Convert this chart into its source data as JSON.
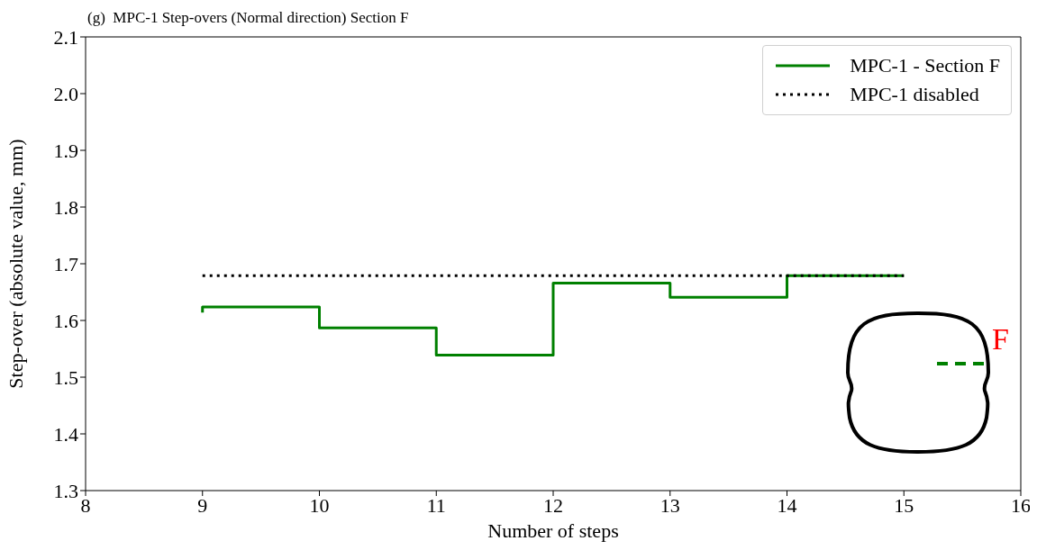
{
  "chart_data": {
    "type": "line",
    "title": "(g)  MPC-1 Step-overs (Normal direction) Section F",
    "xlabel": "Number of steps",
    "ylabel": "Step-over (absolute value, mm)",
    "xlim": [
      8,
      16
    ],
    "xticks": [
      8,
      9,
      10,
      11,
      12,
      13,
      14,
      15,
      16
    ],
    "ylim": [
      1.3,
      2.1
    ],
    "yticks": [
      1.3,
      1.4,
      1.5,
      1.6,
      1.7,
      1.8,
      1.9,
      {
        "value": 2,
        "label": "2.0"
      },
      2.1
    ],
    "series": [
      {
        "name": "MPC-1 - Section F",
        "type": "step",
        "color": "#008000",
        "line_style": "solid",
        "x": [
          9,
          10,
          11,
          12,
          13,
          14,
          15
        ],
        "values": [
          1.614,
          1.624,
          1.587,
          1.539,
          1.666,
          1.641,
          1.679
        ]
      },
      {
        "name": "MPC-1 disabled",
        "type": "line",
        "color": "#000000",
        "line_style": "dotted",
        "x": [
          9,
          15
        ],
        "values": [
          1.679,
          1.679
        ]
      }
    ],
    "annotations": [
      "F"
    ],
    "legend": "top right",
    "grid": false,
    "marker": "none"
  }
}
